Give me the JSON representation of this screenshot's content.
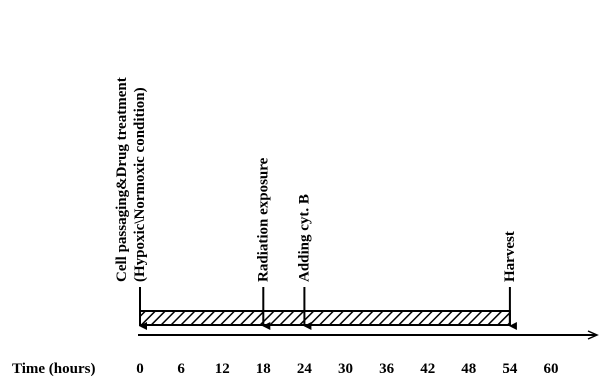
{
  "diagram": {
    "axis": {
      "title": "Time (hours)",
      "ticks": [
        "0",
        "6",
        "12",
        "18",
        "24",
        "30",
        "36",
        "42",
        "48",
        "54",
        "60"
      ],
      "min": 0,
      "max": 66
    },
    "bar": {
      "start": 0,
      "end": 54,
      "fill": "hatched"
    },
    "events": [
      {
        "time": 0,
        "lines": [
          "Cell passaging&Drug treatment",
          "(Hypoxic\\Normoxic condition)"
        ]
      },
      {
        "time": 18,
        "lines": [
          "Radiation exposure"
        ]
      },
      {
        "time": 24,
        "lines": [
          "Adding cyt. B"
        ]
      },
      {
        "time": 54,
        "lines": [
          "Harvest"
        ]
      }
    ]
  }
}
